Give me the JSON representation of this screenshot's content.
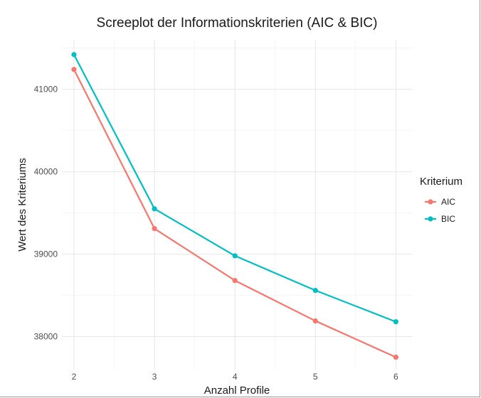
{
  "chart_data": {
    "type": "line",
    "title": "Screeplot der Informationskriterien (AIC & BIC)",
    "xlabel": "Anzahl Profile",
    "ylabel": "Wert des Kriteriums",
    "x": [
      2,
      3,
      4,
      5,
      6
    ],
    "x_ticks": [
      "2",
      "3",
      "4",
      "5",
      "6"
    ],
    "y_ticks": [
      "38000",
      "39000",
      "40000",
      "41000"
    ],
    "y_tick_values": [
      38000,
      39000,
      40000,
      41000
    ],
    "xlim": [
      1.85,
      6.2
    ],
    "ylim": [
      37600,
      41600
    ],
    "grid": true,
    "legend": {
      "title": "Kriterium",
      "placement": "right"
    },
    "series": [
      {
        "name": "AIC",
        "color": "#F8766D",
        "values": [
          41240,
          39310,
          38680,
          38190,
          37750
        ]
      },
      {
        "name": "BIC",
        "color": "#00BFC4",
        "values": [
          41420,
          39550,
          38980,
          38560,
          38180
        ]
      }
    ]
  }
}
